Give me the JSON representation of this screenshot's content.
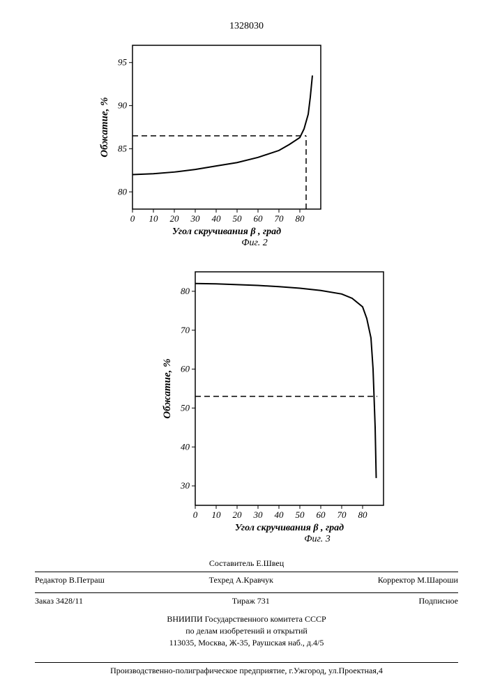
{
  "page_number": "1328030",
  "chart1": {
    "type": "line",
    "ylabel": "Обжатие, %",
    "xlabel": "Угол скручивания β , град",
    "fig_label": "Фиг. 2",
    "xlim": [
      0,
      90
    ],
    "ylim": [
      78,
      97
    ],
    "xticks": [
      0,
      10,
      20,
      30,
      40,
      50,
      60,
      70,
      80
    ],
    "yticks": [
      80,
      85,
      90,
      95
    ],
    "curve": [
      [
        0,
        82
      ],
      [
        10,
        82.1
      ],
      [
        20,
        82.3
      ],
      [
        30,
        82.6
      ],
      [
        40,
        83
      ],
      [
        50,
        83.4
      ],
      [
        60,
        84
      ],
      [
        70,
        84.8
      ],
      [
        75,
        85.5
      ],
      [
        80,
        86.3
      ],
      [
        82,
        87.3
      ],
      [
        84,
        89
      ],
      [
        85,
        91
      ],
      [
        86,
        93.5
      ]
    ],
    "guide_h_y": 86.5,
    "guide_h_x_from": 0,
    "guide_h_x_to": 83,
    "guide_v_x": 83,
    "guide_v_y_from": 78,
    "guide_v_y_to": 86.5,
    "line_color": "#000000",
    "dash_color": "#000000",
    "bg": "#ffffff"
  },
  "chart2": {
    "type": "line",
    "ylabel": "Обжатие, %",
    "xlabel": "Угол скручивания β , град",
    "fig_label": "Фиг. 3",
    "xlim": [
      0,
      90
    ],
    "ylim": [
      25,
      85
    ],
    "xticks": [
      0,
      10,
      20,
      30,
      40,
      50,
      60,
      70,
      80
    ],
    "yticks": [
      30,
      40,
      50,
      60,
      70,
      80
    ],
    "curve": [
      [
        0,
        82
      ],
      [
        10,
        81.9
      ],
      [
        20,
        81.7
      ],
      [
        30,
        81.5
      ],
      [
        40,
        81.2
      ],
      [
        50,
        80.8
      ],
      [
        60,
        80.2
      ],
      [
        70,
        79.3
      ],
      [
        75,
        78.2
      ],
      [
        80,
        76
      ],
      [
        82,
        73
      ],
      [
        84,
        68
      ],
      [
        85,
        60
      ],
      [
        86,
        45
      ],
      [
        86.5,
        32
      ]
    ],
    "guide_h_y": 53,
    "guide_h_x_from": 0,
    "guide_h_x_to": 87,
    "line_color": "#000000",
    "dash_color": "#000000",
    "bg": "#ffffff"
  },
  "footer": {
    "compiler": "Составитель Е.Швец",
    "editor": "Редактор В.Петраш",
    "techred": "Техред А.Кравчук",
    "corrector": "Корректор М.Шароши",
    "order": "Заказ 3428/11",
    "tirazh": "Тираж 731",
    "podpisnoe": "Подписное",
    "institution1": "ВНИИПИ Государственного комитета СССР",
    "institution2": "по делам изобретений и открытий",
    "address": "113035, Москва, Ж-35, Раушская наб., д.4/5",
    "print": "Производственно-полиграфическое предприятие, г.Ужгород, ул.Проектная,4"
  }
}
